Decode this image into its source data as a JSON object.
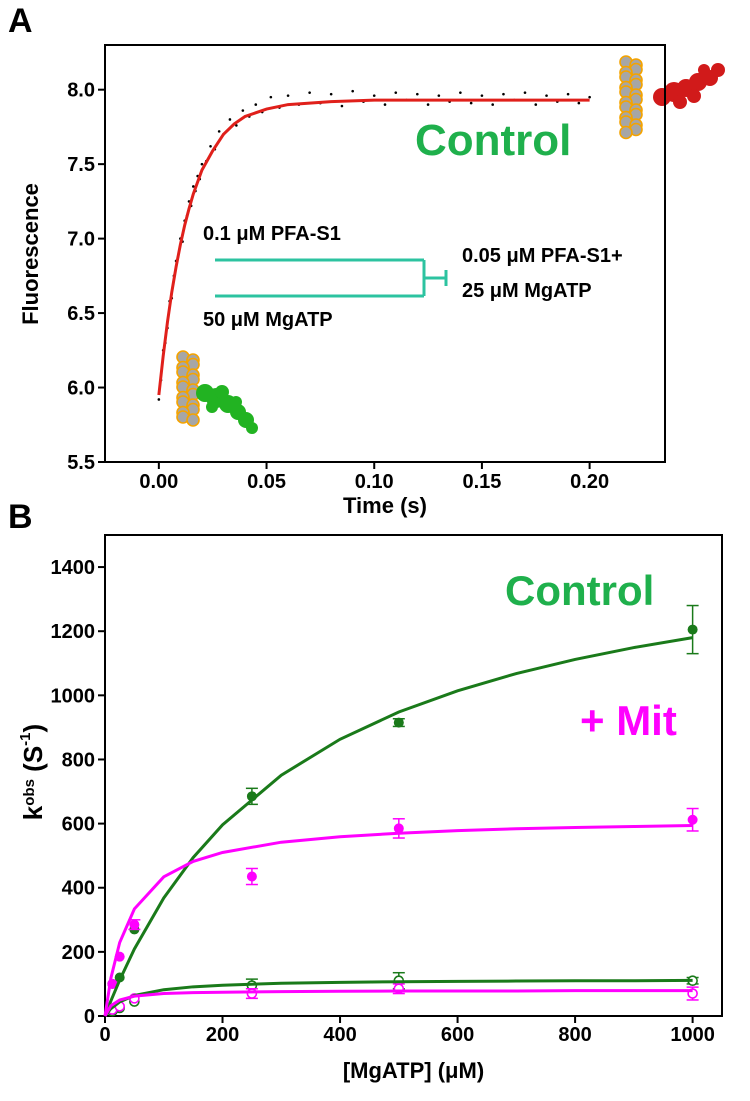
{
  "chart_data": [
    {
      "type": "scatter",
      "panel_label": "A",
      "xlabel": "Time (s)",
      "ylabel": "Fluorescence",
      "xlim": [
        -0.025,
        0.235
      ],
      "ylim": [
        5.5,
        8.3
      ],
      "xticks": [
        {
          "value": 0,
          "label": "0.00"
        },
        0.05,
        {
          "value": 0.1,
          "label": "0.10"
        },
        0.15,
        {
          "value": 0.2,
          "label": "0.20"
        }
      ],
      "yticks": [
        5.5,
        {
          "value": 6,
          "label": "6.0"
        },
        6.5,
        {
          "value": 7,
          "label": "7.0"
        },
        7.5,
        {
          "value": 8,
          "label": "8.0"
        }
      ],
      "series": [
        {
          "marker": "dot",
          "color": "#000000",
          "x": [
            0,
            0.001,
            0.002,
            0.003,
            0.004,
            0.005,
            0.006,
            0.007,
            0.008,
            0.009,
            0.01,
            0.011,
            0.012,
            0.013,
            0.014,
            0.015,
            0.016,
            0.017,
            0.018,
            0.019,
            0.02,
            0.022,
            0.024,
            0.026,
            0.028,
            0.03,
            0.033,
            0.036,
            0.039,
            0.042,
            0.045,
            0.048,
            0.052,
            0.056,
            0.06,
            0.065,
            0.07,
            0.075,
            0.08,
            0.085,
            0.09,
            0.095,
            0.1,
            0.105,
            0.11,
            0.115,
            0.12,
            0.125,
            0.13,
            0.135,
            0.14,
            0.145,
            0.15,
            0.155,
            0.16,
            0.165,
            0.17,
            0.175,
            0.18,
            0.185,
            0.19,
            0.195,
            0.2
          ],
          "values": [
            5.92,
            6.05,
            6.25,
            6.3,
            6.4,
            6.58,
            6.6,
            6.75,
            6.85,
            6.88,
            7.0,
            6.98,
            7.12,
            7.15,
            7.25,
            7.22,
            7.35,
            7.32,
            7.42,
            7.4,
            7.5,
            7.52,
            7.62,
            7.6,
            7.72,
            7.7,
            7.8,
            7.76,
            7.86,
            7.82,
            7.9,
            7.85,
            7.95,
            7.88,
            7.96,
            7.9,
            7.98,
            7.91,
            7.97,
            7.89,
            7.99,
            7.92,
            7.96,
            7.9,
            7.98,
            7.93,
            7.97,
            7.9,
            7.96,
            7.92,
            7.98,
            7.91,
            7.96,
            7.9,
            7.97,
            7.93,
            7.98,
            7.9,
            7.96,
            7.92,
            7.97,
            7.91,
            7.95
          ]
        },
        {
          "marker": "line",
          "color": "#e0201b",
          "x": [
            0,
            0.002,
            0.004,
            0.006,
            0.008,
            0.01,
            0.012,
            0.014,
            0.016,
            0.018,
            0.02,
            0.025,
            0.03,
            0.035,
            0.04,
            0.05,
            0.06,
            0.08,
            0.1,
            0.15,
            0.2
          ],
          "values": [
            5.95,
            6.21,
            6.44,
            6.64,
            6.81,
            6.96,
            7.09,
            7.2,
            7.3,
            7.38,
            7.46,
            7.59,
            7.7,
            7.77,
            7.82,
            7.87,
            7.9,
            7.92,
            7.93,
            7.93,
            7.93
          ]
        }
      ],
      "annotations": [
        {
          "text": "Control",
          "color": "#1fb04c"
        },
        {
          "text": "0.1 μM PFA-S1",
          "color": "#000000"
        },
        {
          "text": "50 μM MgATP",
          "color": "#000000"
        },
        {
          "text": "0.05 μM PFA-S1+",
          "color": "#000000"
        },
        {
          "text": "25 μM MgATP",
          "color": "#000000"
        }
      ]
    },
    {
      "type": "scatter",
      "panel_label": "B",
      "xlabel": "[MgATP] (μM)",
      "ylabel": [
        "k",
        "obs",
        " (S",
        "-1",
        ")"
      ],
      "xlim": [
        0,
        1050
      ],
      "ylim": [
        0,
        1500
      ],
      "xticks": [
        0,
        200,
        400,
        600,
        800,
        1000
      ],
      "yticks": [
        0,
        200,
        400,
        600,
        800,
        1000,
        1200,
        1400
      ],
      "series": [
        {
          "marker": "filled",
          "color": "#1a7a1a",
          "x": [
            12.5,
            25,
            50,
            250,
            500,
            1000
          ],
          "values": [
            100,
            120,
            270,
            685,
            915,
            1205
          ],
          "errors": [
            null,
            null,
            null,
            25,
            12,
            75
          ]
        },
        {
          "marker": "filled",
          "color": "#ff00ff",
          "x": [
            12.5,
            25,
            50,
            250,
            500,
            1000
          ],
          "values": [
            100,
            185,
            285,
            435,
            585,
            612
          ],
          "errors": [
            null,
            null,
            15,
            25,
            30,
            35
          ]
        },
        {
          "marker": "open",
          "color": "#1a7a1a",
          "x": [
            12.5,
            25,
            50,
            250,
            500,
            1000
          ],
          "values": [
            15,
            25,
            45,
            95,
            110,
            110
          ],
          "errors": [
            null,
            null,
            null,
            20,
            25,
            10
          ]
        },
        {
          "marker": "open",
          "color": "#ff00ff",
          "x": [
            12.5,
            25,
            50,
            250,
            500,
            1000
          ],
          "values": [
            20,
            30,
            55,
            70,
            85,
            70
          ],
          "errors": [
            null,
            null,
            null,
            15,
            15,
            20
          ]
        },
        {
          "marker": "line",
          "color": "#1a7a1a",
          "x": [
            0,
            10,
            25,
            50,
            100,
            150,
            200,
            300,
            400,
            500,
            600,
            700,
            800,
            900,
            1000
          ],
          "values": [
            0,
            47,
            112,
            209,
            368,
            494,
            596,
            751,
            863,
            948,
            1014,
            1068,
            1112,
            1149,
            1180
          ]
        },
        {
          "marker": "line",
          "color": "#ff00ff",
          "x": [
            0,
            10,
            25,
            50,
            100,
            150,
            200,
            300,
            400,
            500,
            600,
            700,
            800,
            900,
            1000
          ],
          "values": [
            0,
            118,
            229,
            334,
            434,
            482,
            510,
            542,
            559,
            570,
            578,
            584,
            588,
            591,
            594
          ]
        },
        {
          "marker": "line",
          "color": "#1a7a1a",
          "x": [
            0,
            10,
            25,
            50,
            100,
            150,
            200,
            300,
            400,
            500,
            600,
            700,
            800,
            900,
            1000
          ],
          "values": [
            0,
            23,
            44,
            64,
            82,
            91,
            96,
            102,
            105,
            107,
            108,
            109,
            110,
            110,
            111
          ]
        },
        {
          "marker": "line",
          "color": "#ff00ff",
          "x": [
            0,
            10,
            25,
            50,
            100,
            150,
            200,
            300,
            400,
            500,
            600,
            700,
            800,
            900,
            1000
          ],
          "values": [
            0,
            32,
            50,
            62,
            70,
            73,
            74,
            76,
            77,
            78,
            78,
            78,
            79,
            79,
            79
          ]
        }
      ],
      "annotations": [
        {
          "text": "Control",
          "color": "#1fb04c"
        },
        {
          "text": "+ Mit",
          "color": "#ff00ff"
        }
      ]
    }
  ]
}
